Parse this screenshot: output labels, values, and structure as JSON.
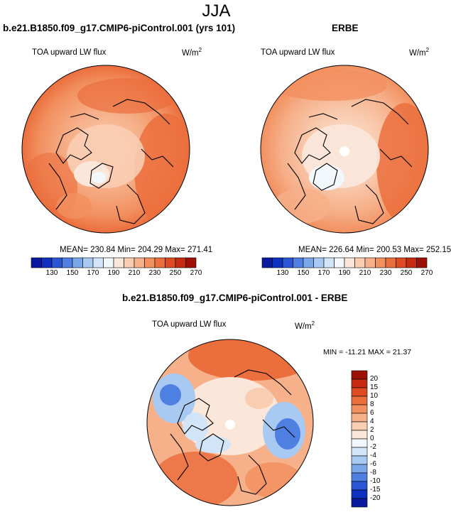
{
  "figure_title": "JJA",
  "panels": [
    {
      "title": "b.e21.B1850.f09_g17.CMIP6-piControl.001 (yrs 101)",
      "variable": "TOA upward LW flux",
      "units": "W/m",
      "units_sup": "2",
      "stats": "MEAN= 230.84  Min= 204.29  Max= 271.41"
    },
    {
      "title": "ERBE",
      "variable": "TOA upward LW flux",
      "units": "W/m",
      "units_sup": "2",
      "stats": "MEAN= 226.64  Min= 200.53  Max= 252.15"
    },
    {
      "title": "b.e21.B1850.f09_g17.CMIP6-piControl.001 - ERBE",
      "variable": "TOA upward LW flux",
      "units": "W/m",
      "units_sup": "2",
      "stats": "MIN = -11.21 MAX =  21.37"
    }
  ],
  "colorbar_abs": {
    "labels": [
      "130",
      "150",
      "170",
      "190",
      "210",
      "230",
      "250",
      "270"
    ],
    "colors": [
      "#0a1a9e",
      "#1030c0",
      "#2a55d4",
      "#4f7fe0",
      "#7aa6ea",
      "#a8c9f2",
      "#d2e5f8",
      "#f2f7fb",
      "#fbe6da",
      "#f9cdb2",
      "#f6b08a",
      "#f2905f",
      "#eb6e3d",
      "#de4b22",
      "#c62a10",
      "#9c1006"
    ]
  },
  "colorbar_diff": {
    "labels": [
      "20",
      "15",
      "10",
      "8",
      "6",
      "4",
      "2",
      "0",
      "-2",
      "-4",
      "-6",
      "-8",
      "-10",
      "-15",
      "-20"
    ],
    "colors": [
      "#9c1006",
      "#c62a10",
      "#de4b22",
      "#eb6e3d",
      "#f2905f",
      "#f6b08a",
      "#f9cdb2",
      "#fbe6da",
      "#f2f7fb",
      "#d2e5f8",
      "#a8c9f2",
      "#7aa6ea",
      "#4f7fe0",
      "#2a55d4",
      "#1030c0",
      "#0a1a9e"
    ]
  },
  "chart_data": [
    {
      "type": "heatmap",
      "title": "b.e21.B1850.f09_g17.CMIP6-piControl.001 (yrs 101)",
      "projection": "polar stereographic, North Pole",
      "variable": "TOA upward LW flux",
      "units": "W/m2",
      "mean": 230.84,
      "min": 204.29,
      "max": 271.41,
      "levels": [
        130,
        140,
        150,
        160,
        170,
        180,
        190,
        200,
        210,
        220,
        230,
        240,
        250,
        260,
        270
      ]
    },
    {
      "type": "heatmap",
      "title": "ERBE",
      "projection": "polar stereographic, North Pole",
      "variable": "TOA upward LW flux",
      "units": "W/m2",
      "mean": 226.64,
      "min": 200.53,
      "max": 252.15,
      "levels": [
        130,
        140,
        150,
        160,
        170,
        180,
        190,
        200,
        210,
        220,
        230,
        240,
        250,
        260,
        270
      ]
    },
    {
      "type": "heatmap",
      "title": "b.e21.B1850.f09_g17.CMIP6-piControl.001 - ERBE",
      "projection": "polar stereographic, North Pole",
      "variable": "TOA upward LW flux",
      "units": "W/m2",
      "min": -11.21,
      "max": 21.37,
      "levels": [
        -20,
        -15,
        -10,
        -8,
        -6,
        -4,
        -2,
        0,
        2,
        4,
        6,
        8,
        10,
        15,
        20
      ]
    }
  ]
}
